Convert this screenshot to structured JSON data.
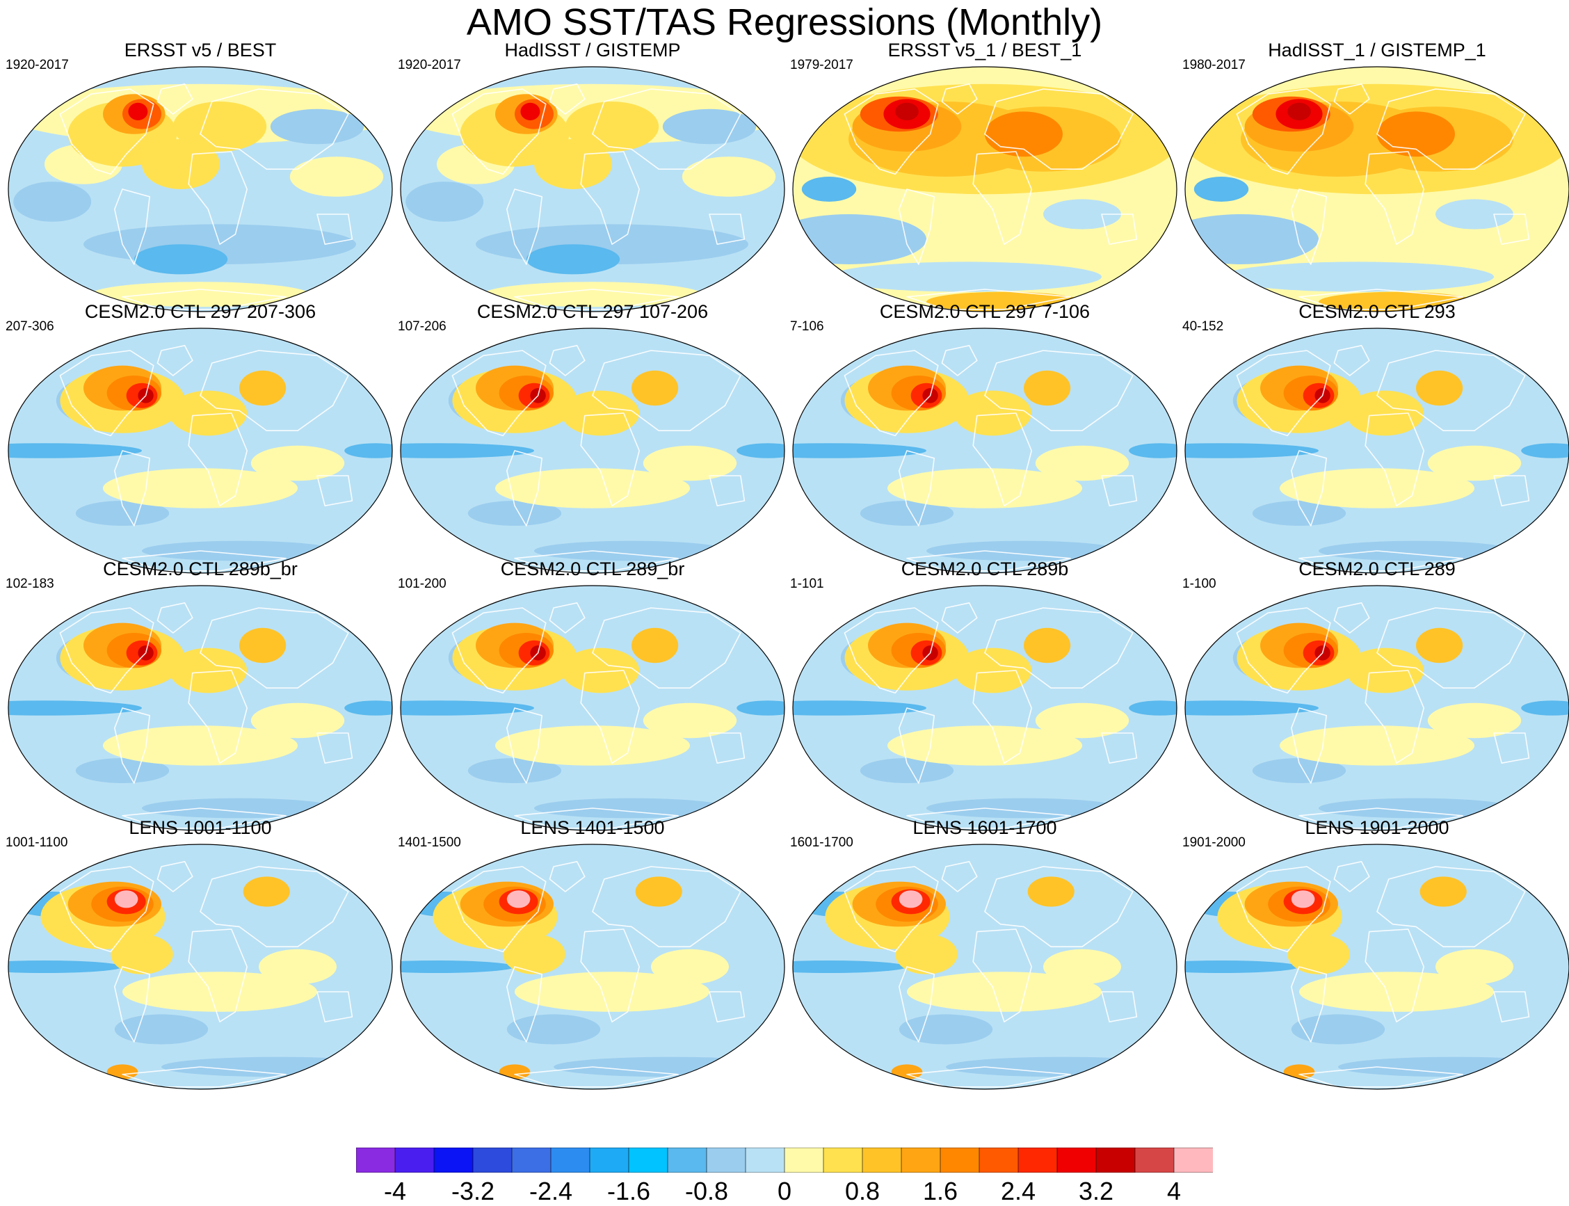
{
  "title": "AMO SST/TAS Regressions (Monthly)",
  "panels": [
    {
      "title": "ERSST v5 / BEST",
      "years": "1920-2017",
      "pattern": "obs-long"
    },
    {
      "title": "HadISST / GISTEMP",
      "years": "1920-2017",
      "pattern": "obs-long"
    },
    {
      "title": "ERSST v5_1 / BEST_1",
      "years": "1979-2017",
      "pattern": "obs-recent"
    },
    {
      "title": "HadISST_1 / GISTEMP_1",
      "years": "1980-2017",
      "pattern": "obs-recent"
    },
    {
      "title": "CESM2.0 CTL 297 207-306",
      "years": "207-306",
      "pattern": "model"
    },
    {
      "title": "CESM2.0 CTL 297 107-206",
      "years": "107-206",
      "pattern": "model"
    },
    {
      "title": "CESM2.0 CTL 297 7-106",
      "years": "7-106",
      "pattern": "model"
    },
    {
      "title": "CESM2.0 CTL 293",
      "years": "40-152",
      "pattern": "model"
    },
    {
      "title": "CESM2.0 CTL 289b_br",
      "years": "102-183",
      "pattern": "model"
    },
    {
      "title": "CESM2.0 CTL 289_br",
      "years": "101-200",
      "pattern": "model"
    },
    {
      "title": "CESM2.0 CTL 289b",
      "years": "1-101",
      "pattern": "model"
    },
    {
      "title": "CESM2.0 CTL 289",
      "years": "1-100",
      "pattern": "model"
    },
    {
      "title": "LENS 1001-1100",
      "years": "1001-1100",
      "pattern": "lens"
    },
    {
      "title": "LENS 1401-1500",
      "years": "1401-1500",
      "pattern": "lens"
    },
    {
      "title": "LENS 1601-1700",
      "years": "1601-1700",
      "pattern": "lens"
    },
    {
      "title": "LENS 1901-2000",
      "years": "1901-2000",
      "pattern": "lens"
    }
  ],
  "colorbar": {
    "colors": [
      "#8a2be2",
      "#4b1ef0",
      "#0a14f5",
      "#2d4bdc",
      "#3c6ee6",
      "#2d8cf0",
      "#1eaaf5",
      "#00c3ff",
      "#5ab9ee",
      "#9bcdee",
      "#b9e1f5",
      "#fffaaa",
      "#ffe150",
      "#ffc328",
      "#ffa514",
      "#ff8700",
      "#ff5a00",
      "#ff2800",
      "#f00000",
      "#c80000",
      "#d74646",
      "#ffb9be"
    ],
    "labels": [
      "-4",
      "-3.2",
      "-2.4",
      "-1.6",
      "-0.8",
      "0",
      "0.8",
      "1.6",
      "2.4",
      "3.2",
      "4"
    ],
    "label_values": [
      -4,
      -3.2,
      -2.4,
      -1.6,
      -0.8,
      0,
      0.8,
      1.6,
      2.4,
      3.2,
      4
    ],
    "min": -4.4,
    "max": 4.4
  }
}
